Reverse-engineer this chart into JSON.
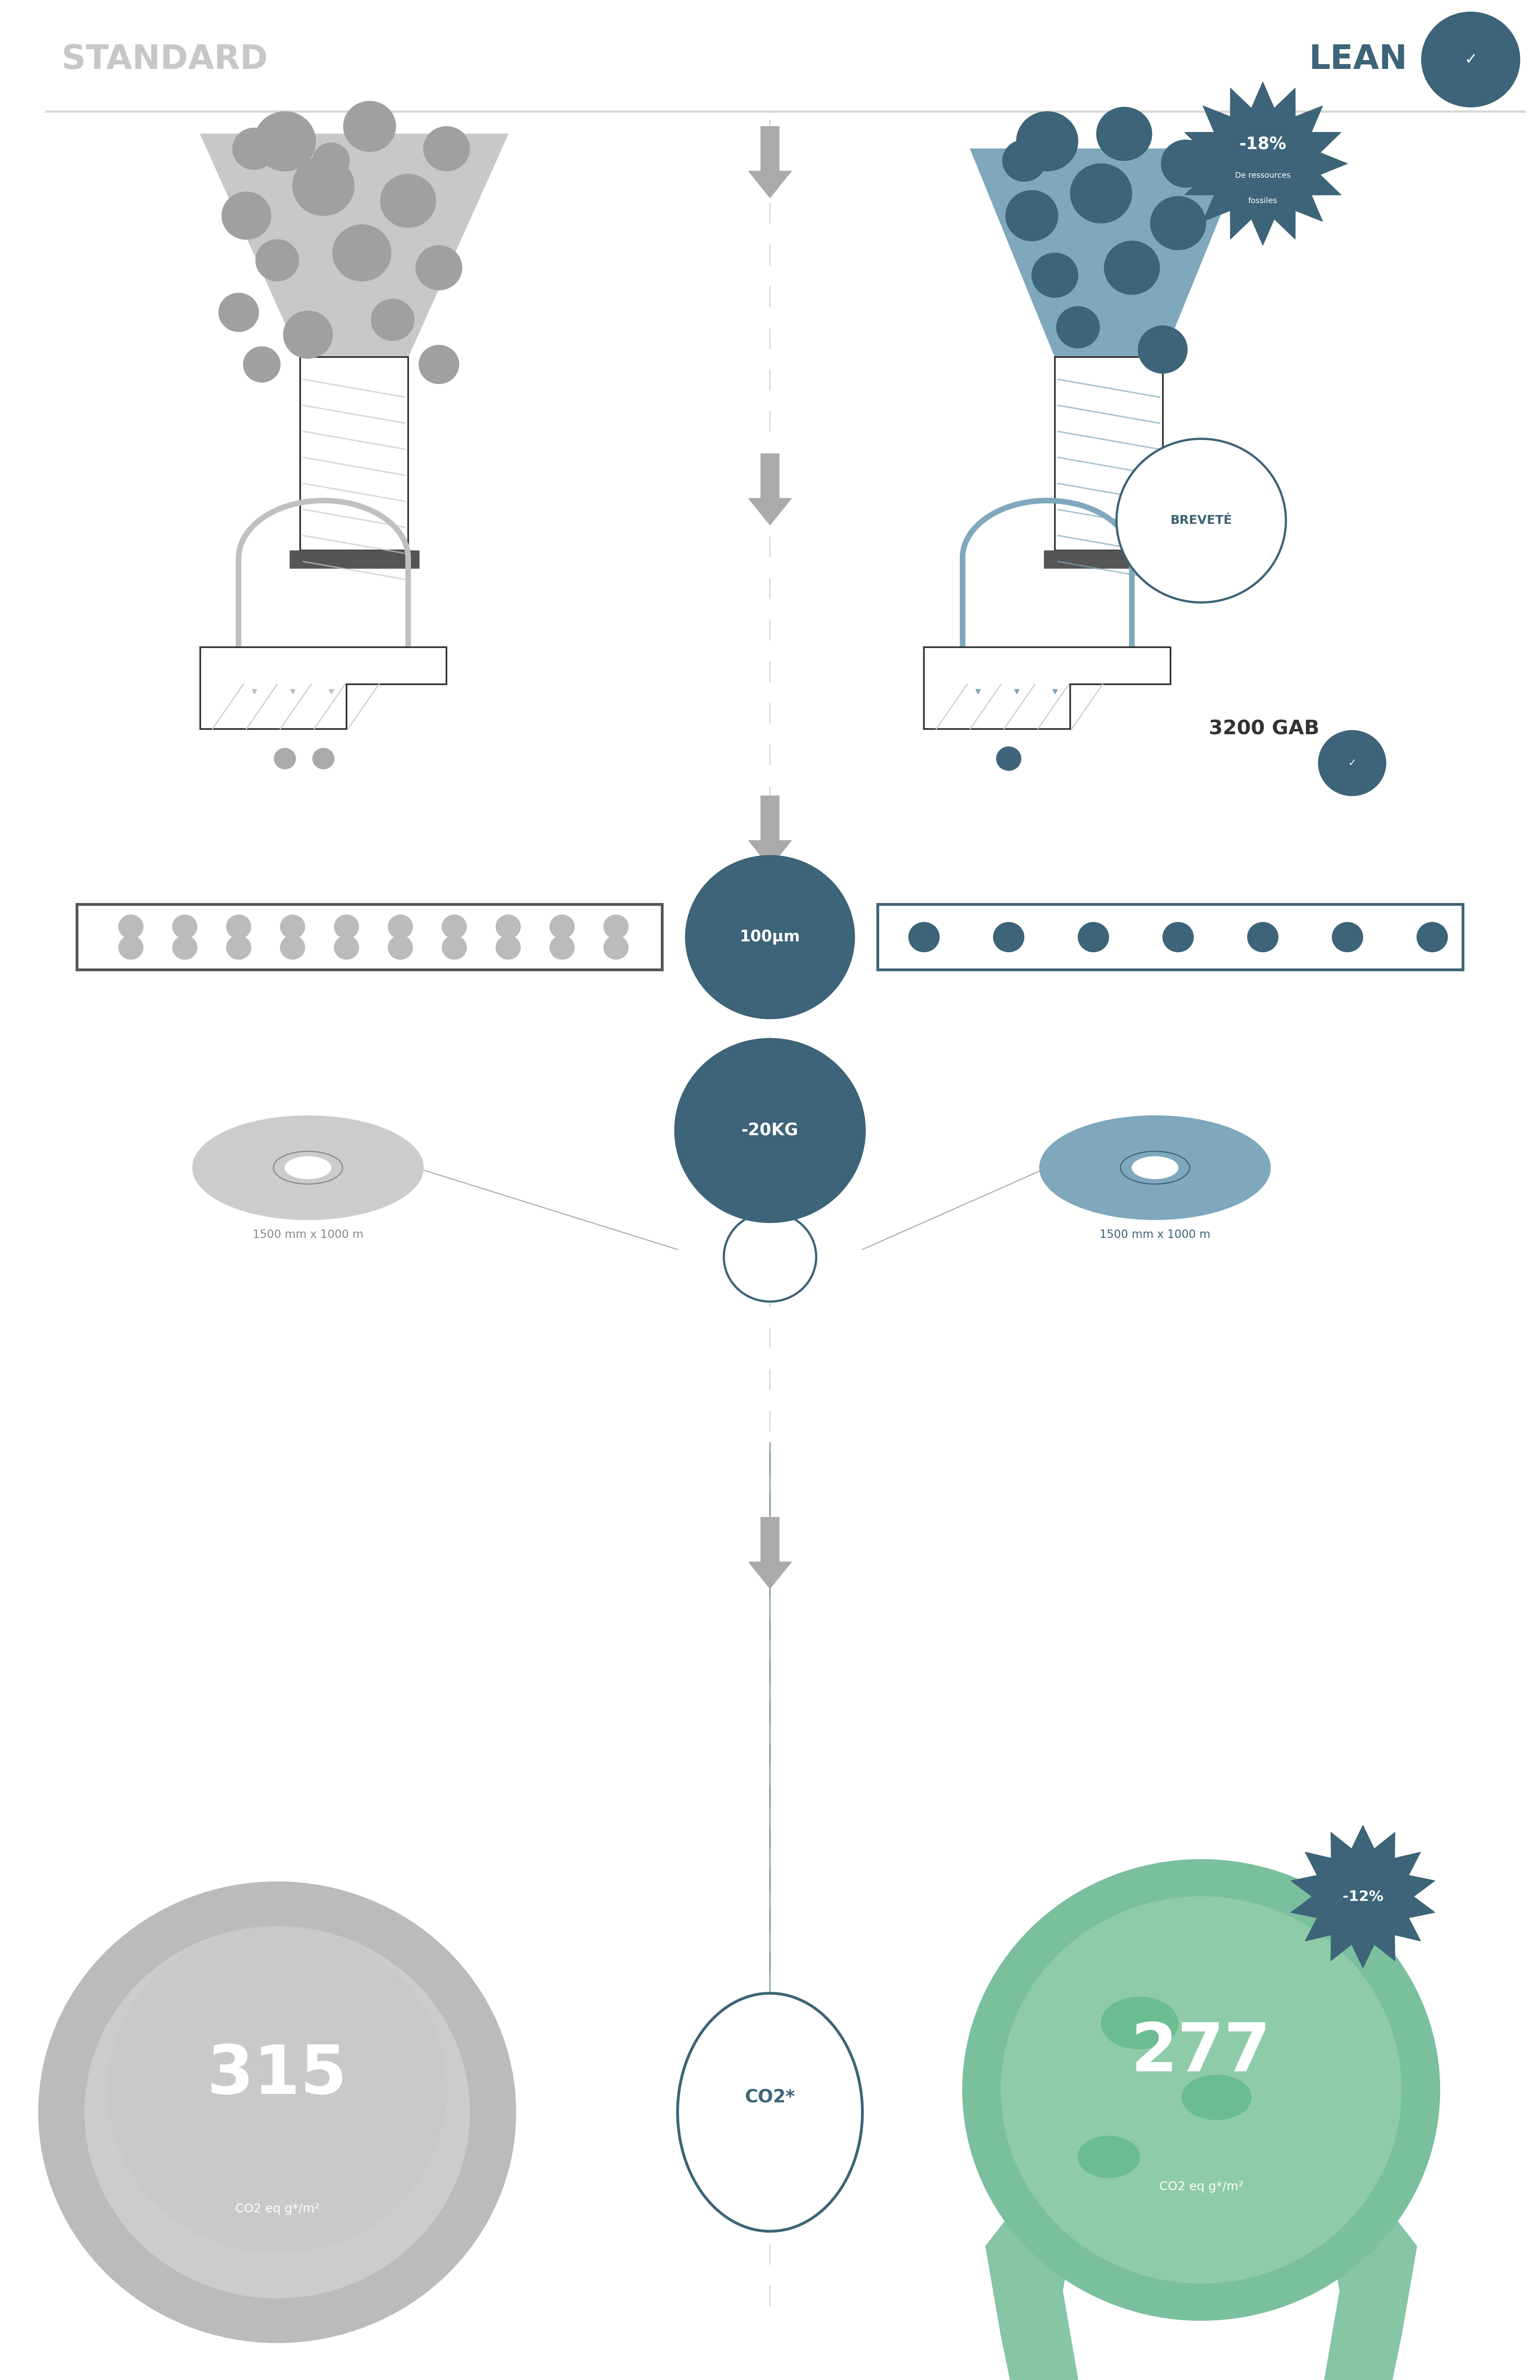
{
  "bg_color": "#ffffff",
  "gray_color": "#b0b0b0",
  "dark_gray": "#808080",
  "teal_color": "#3d6478",
  "teal_light": "#7fa8bc",
  "teal_mid": "#4a7a8f",
  "green_color": "#7abf9e",
  "green_light": "#a8d8b0",
  "title_left": "STANDARD",
  "title_right": "LEAN",
  "badge_18": "-18%",
  "badge_18_sub1": "De ressources",
  "badge_18_sub2": "fossiles",
  "badge_brevet": "BREVETÉ",
  "label_gab": "3200 GAB",
  "label_100um": "100μm",
  "label_20kg": "-20KG",
  "label_reel1": "1500 mm x 1000 m",
  "label_reel2": "1500 mm x 1000 m",
  "label_315": "315",
  "label_315_sub": "CO2 eq g*/m²",
  "label_277": "277",
  "label_277_sub": "CO2 eq g*/m²",
  "label_co2": "CO2*",
  "badge_12": "-12%"
}
